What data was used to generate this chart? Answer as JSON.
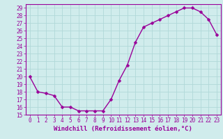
{
  "x": [
    0,
    1,
    2,
    3,
    4,
    5,
    6,
    7,
    8,
    9,
    10,
    11,
    12,
    13,
    14,
    15,
    16,
    17,
    18,
    19,
    20,
    21,
    22,
    23
  ],
  "y": [
    20,
    18,
    17.8,
    17.5,
    16,
    16,
    15.5,
    15.5,
    15.5,
    15.5,
    17,
    19.5,
    21.5,
    24.5,
    26.5,
    27,
    27.5,
    28,
    28.5,
    29,
    29,
    28.5,
    27.5,
    25.5
  ],
  "line_color": "#990099",
  "marker_color": "#990099",
  "bg_color": "#d0ecec",
  "grid_color": "#b0d8d8",
  "xlabel": "Windchill (Refroidissement éolien,°C)",
  "xlim": [
    -0.5,
    23.5
  ],
  "ylim": [
    15,
    29.5
  ],
  "yticks": [
    15,
    16,
    17,
    18,
    19,
    20,
    21,
    22,
    23,
    24,
    25,
    26,
    27,
    28,
    29
  ],
  "xticks": [
    0,
    1,
    2,
    3,
    4,
    5,
    6,
    7,
    8,
    9,
    10,
    11,
    12,
    13,
    14,
    15,
    16,
    17,
    18,
    19,
    20,
    21,
    22,
    23
  ],
  "font_size": 5.5,
  "xlabel_fontsize": 6.5,
  "marker_size": 2.5,
  "line_width": 1.0
}
